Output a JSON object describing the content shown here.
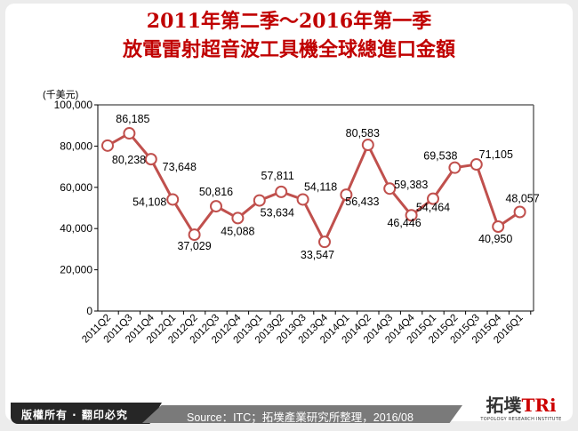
{
  "title_line1": "2011年第二季～2016年第一季",
  "title_line2": "放電雷射超音波工具機全球總進口金額",
  "footer": {
    "copyright": "版權所有 · 翻印必究",
    "source": "Source：ITC；拓墣產業研究所整理，2016/08",
    "logo_main": "拓墣",
    "logo_accent": "TRi",
    "logo_sub": "TOPOLOGY RESEARCH INSTITUTE"
  },
  "colors": {
    "line": "#c0504d",
    "title": "#c00000"
  },
  "chart_data": {
    "type": "line",
    "ylabel": "(千美元)",
    "ylim": [
      0,
      100000
    ],
    "yticks": [
      "0",
      "20,000",
      "40,000",
      "60,000",
      "80,000",
      "100,000"
    ],
    "categories": [
      "2011Q2",
      "2011Q3",
      "2011Q4",
      "2012Q1",
      "2012Q2",
      "2012Q3",
      "2012Q4",
      "2013Q1",
      "2013Q2",
      "2013Q3",
      "2013Q4",
      "2014Q1",
      "2014Q2",
      "2014Q3",
      "2014Q4",
      "2015Q1",
      "2015Q2",
      "2015Q3",
      "2015Q4",
      "2016Q1"
    ],
    "values": [
      80238,
      86185,
      73648,
      54108,
      37029,
      50816,
      45088,
      53634,
      57811,
      54118,
      33547,
      56433,
      80583,
      59383,
      46446,
      54464,
      69538,
      71105,
      40950,
      48057
    ],
    "labels": [
      "80,238",
      "86,185",
      "73,648",
      "54,108",
      "37,029",
      "50,816",
      "45,088",
      "53,634",
      "57,811",
      "54,118",
      "33,547",
      "56,433",
      "80,583",
      "59,383",
      "46,446",
      "54,464",
      "69,538",
      "71,105",
      "40,950",
      "48,057"
    ]
  }
}
